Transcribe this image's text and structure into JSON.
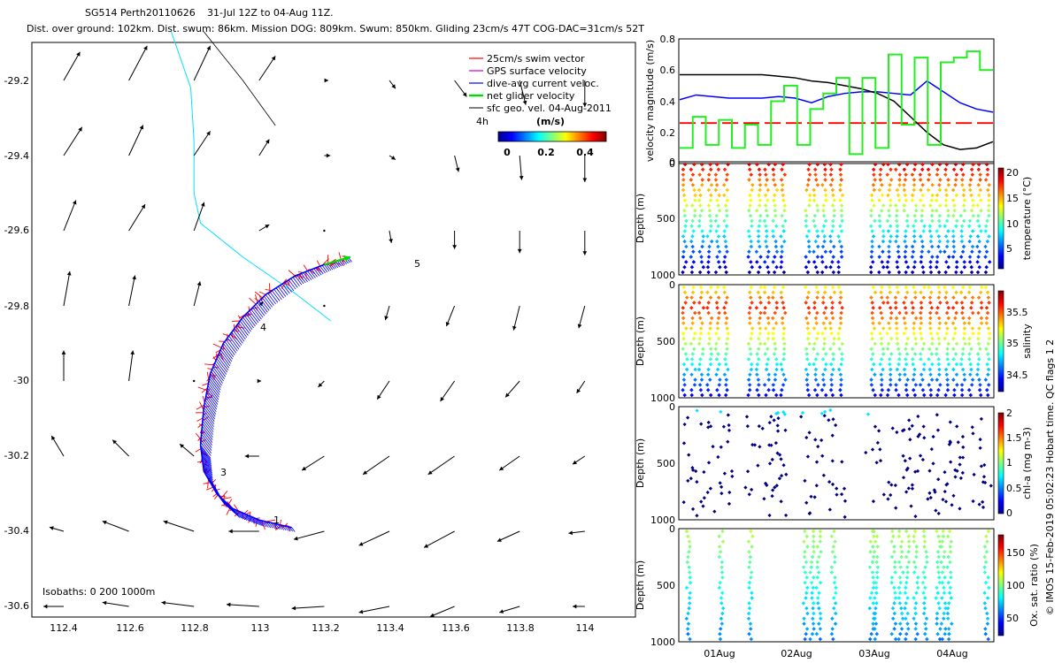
{
  "header": {
    "line1_id": "SG514 Perth20110626",
    "line1_dates": "31-Jul 12Z to 04-Aug 11Z.",
    "line2": "Dist. over ground: 102km. Dist. swum: 86km. Mission DOG: 809km. Swum: 850km. Gliding 23cm/s 47T COG-DAC=31cm/s 52T"
  },
  "footer_credit": "© IMOS 15-Feb-2019 05:02:23 Hobart time. QC flags 1  2",
  "colors": {
    "swim": "#ff0000",
    "gps": "#cc00cc",
    "dac": "#0000ff",
    "net": "#00dd00",
    "sfc": "#000000",
    "isobath": "#00e0ff",
    "speed": "#000000"
  },
  "chart_data": [
    {
      "id": "map",
      "type": "quiver",
      "xticks": [
        "112.4",
        "112.6",
        "112.8",
        "113",
        "113.2",
        "113.4",
        "113.6",
        "113.8",
        "114"
      ],
      "yticks": [
        "-29.2",
        "-29.4",
        "-29.6",
        "-29.8",
        "-30",
        "-30.2",
        "-30.4",
        "-30.6"
      ],
      "xlim": [
        112.31,
        114.15
      ],
      "ylim": [
        -30.69,
        -29.07
      ],
      "legend": [
        {
          "key": "swim",
          "label": "25cm/s swim vector"
        },
        {
          "key": "gps",
          "label": "GPS surface velocity"
        },
        {
          "key": "dac",
          "label": "dive-avg current veloc."
        },
        {
          "key": "net",
          "label": "net glider velocity"
        },
        {
          "key": "sfc",
          "label": "sfc geo. vel. 04-Aug-2011"
        }
      ],
      "legend_placement": "top-right",
      "interval_label": "4h",
      "colorbar_title": "(m/s)",
      "colorbar_ticks": [
        "0",
        "0.2",
        "0.4"
      ],
      "colorbar_range": [
        0,
        0.5
      ],
      "isobaths_label": "Isobaths: 0   200   1000m",
      "track_labels": [
        "1",
        "3",
        "4",
        "5"
      ],
      "track_path": [
        [
          113.1,
          -30.39
        ],
        [
          113.0,
          -30.37
        ],
        [
          112.92,
          -30.34
        ],
        [
          112.87,
          -30.3
        ],
        [
          112.83,
          -30.24
        ],
        [
          112.82,
          -30.17
        ],
        [
          112.83,
          -30.07
        ],
        [
          112.85,
          -29.98
        ],
        [
          112.89,
          -29.9
        ],
        [
          112.95,
          -29.83
        ],
        [
          113.02,
          -29.77
        ],
        [
          113.11,
          -29.72
        ],
        [
          113.2,
          -29.69
        ],
        [
          113.28,
          -29.67
        ]
      ],
      "current_vectors": [
        {
          "lon": 112.4,
          "lat": -29.2,
          "u": 0.08,
          "v": 0.14
        },
        {
          "lon": 112.6,
          "lat": -29.2,
          "u": 0.09,
          "v": 0.17
        },
        {
          "lon": 112.8,
          "lat": -29.2,
          "u": 0.08,
          "v": 0.17
        },
        {
          "lon": 113.0,
          "lat": -29.2,
          "u": 0.08,
          "v": 0.12
        },
        {
          "lon": 113.2,
          "lat": -29.2,
          "u": 0.02,
          "v": 0.0
        },
        {
          "lon": 113.4,
          "lat": -29.2,
          "u": 0.03,
          "v": -0.04
        },
        {
          "lon": 113.6,
          "lat": -29.2,
          "u": 0.06,
          "v": -0.08
        },
        {
          "lon": 113.8,
          "lat": -29.2,
          "u": 0.03,
          "v": -0.12
        },
        {
          "lon": 114.0,
          "lat": -29.2,
          "u": 0.0,
          "v": -0.13
        },
        {
          "lon": 112.4,
          "lat": -29.4,
          "u": 0.09,
          "v": 0.14
        },
        {
          "lon": 112.6,
          "lat": -29.4,
          "u": 0.07,
          "v": 0.15
        },
        {
          "lon": 112.8,
          "lat": -29.4,
          "u": 0.08,
          "v": 0.12
        },
        {
          "lon": 113.0,
          "lat": -29.4,
          "u": 0.05,
          "v": 0.08
        },
        {
          "lon": 113.2,
          "lat": -29.4,
          "u": 0.03,
          "v": 0.0
        },
        {
          "lon": 113.4,
          "lat": -29.4,
          "u": 0.03,
          "v": -0.02
        },
        {
          "lon": 113.6,
          "lat": -29.4,
          "u": 0.02,
          "v": -0.08
        },
        {
          "lon": 113.8,
          "lat": -29.4,
          "u": 0.01,
          "v": -0.12
        },
        {
          "lon": 114.0,
          "lat": -29.4,
          "u": 0.0,
          "v": -0.13
        },
        {
          "lon": 112.4,
          "lat": -29.6,
          "u": 0.06,
          "v": 0.15
        },
        {
          "lon": 112.6,
          "lat": -29.6,
          "u": 0.08,
          "v": 0.13
        },
        {
          "lon": 112.8,
          "lat": -29.6,
          "u": 0.05,
          "v": 0.14
        },
        {
          "lon": 113.0,
          "lat": -29.6,
          "u": 0.05,
          "v": 0.03
        },
        {
          "lon": 113.2,
          "lat": -29.6,
          "u": 0.0,
          "v": 0.0
        },
        {
          "lon": 113.4,
          "lat": -29.6,
          "u": 0.01,
          "v": -0.06
        },
        {
          "lon": 113.6,
          "lat": -29.6,
          "u": 0.0,
          "v": -0.09
        },
        {
          "lon": 113.8,
          "lat": -29.6,
          "u": 0.0,
          "v": -0.11
        },
        {
          "lon": 114.0,
          "lat": -29.6,
          "u": 0.0,
          "v": -0.12
        },
        {
          "lon": 112.4,
          "lat": -29.8,
          "u": 0.03,
          "v": 0.17
        },
        {
          "lon": 112.6,
          "lat": -29.8,
          "u": 0.03,
          "v": 0.15
        },
        {
          "lon": 112.8,
          "lat": -29.8,
          "u": 0.03,
          "v": 0.12
        },
        {
          "lon": 113.0,
          "lat": -29.8,
          "u": 0.02,
          "v": 0.02
        },
        {
          "lon": 113.2,
          "lat": -29.8,
          "u": 0.0,
          "v": 0.0
        },
        {
          "lon": 113.4,
          "lat": -29.8,
          "u": -0.02,
          "v": -0.07
        },
        {
          "lon": 113.6,
          "lat": -29.8,
          "u": -0.04,
          "v": -0.1
        },
        {
          "lon": 113.8,
          "lat": -29.8,
          "u": -0.03,
          "v": -0.12
        },
        {
          "lon": 114.0,
          "lat": -29.8,
          "u": -0.03,
          "v": -0.11
        },
        {
          "lon": 112.4,
          "lat": -30.0,
          "u": 0.0,
          "v": 0.15
        },
        {
          "lon": 112.6,
          "lat": -30.0,
          "u": 0.02,
          "v": 0.15
        },
        {
          "lon": 112.8,
          "lat": -30.0,
          "u": 0.0,
          "v": 0.0
        },
        {
          "lon": 113.0,
          "lat": -30.0,
          "u": 0.01,
          "v": 0.0
        },
        {
          "lon": 113.2,
          "lat": -30.0,
          "u": -0.03,
          "v": -0.03
        },
        {
          "lon": 113.4,
          "lat": -30.0,
          "u": -0.06,
          "v": -0.09
        },
        {
          "lon": 113.6,
          "lat": -30.0,
          "u": -0.07,
          "v": -0.1
        },
        {
          "lon": 113.8,
          "lat": -30.0,
          "u": -0.07,
          "v": -0.08
        },
        {
          "lon": 114.0,
          "lat": -30.0,
          "u": -0.04,
          "v": -0.06
        },
        {
          "lon": 112.4,
          "lat": -30.2,
          "u": -0.06,
          "v": 0.1
        },
        {
          "lon": 112.6,
          "lat": -30.2,
          "u": -0.08,
          "v": 0.08
        },
        {
          "lon": 112.8,
          "lat": -30.2,
          "u": -0.07,
          "v": 0.06
        },
        {
          "lon": 113.0,
          "lat": -30.2,
          "u": -0.07,
          "v": 0.0
        },
        {
          "lon": 113.2,
          "lat": -30.2,
          "u": -0.11,
          "v": -0.07
        },
        {
          "lon": 113.4,
          "lat": -30.2,
          "u": -0.13,
          "v": -0.09
        },
        {
          "lon": 113.6,
          "lat": -30.2,
          "u": -0.13,
          "v": -0.09
        },
        {
          "lon": 113.8,
          "lat": -30.2,
          "u": -0.1,
          "v": -0.07
        },
        {
          "lon": 114.0,
          "lat": -30.2,
          "u": -0.06,
          "v": -0.04
        },
        {
          "lon": 112.4,
          "lat": -30.4,
          "u": -0.07,
          "v": 0.02
        },
        {
          "lon": 112.6,
          "lat": -30.4,
          "u": -0.13,
          "v": 0.05
        },
        {
          "lon": 112.8,
          "lat": -30.4,
          "u": -0.15,
          "v": 0.05
        },
        {
          "lon": 113.0,
          "lat": -30.4,
          "u": -0.15,
          "v": 0.0
        },
        {
          "lon": 113.2,
          "lat": -30.4,
          "u": -0.15,
          "v": -0.04
        },
        {
          "lon": 113.4,
          "lat": -30.4,
          "u": -0.15,
          "v": -0.07
        },
        {
          "lon": 113.6,
          "lat": -30.4,
          "u": -0.15,
          "v": -0.08
        },
        {
          "lon": 113.8,
          "lat": -30.4,
          "u": -0.11,
          "v": -0.05
        },
        {
          "lon": 114.0,
          "lat": -30.4,
          "u": -0.08,
          "v": -0.01
        },
        {
          "lon": 112.4,
          "lat": -30.6,
          "u": -0.1,
          "v": 0.0
        },
        {
          "lon": 112.6,
          "lat": -30.6,
          "u": -0.13,
          "v": 0.02
        },
        {
          "lon": 112.8,
          "lat": -30.6,
          "u": -0.16,
          "v": 0.02
        },
        {
          "lon": 113.0,
          "lat": -30.6,
          "u": -0.16,
          "v": 0.01
        },
        {
          "lon": 113.2,
          "lat": -30.6,
          "u": -0.16,
          "v": -0.01
        },
        {
          "lon": 113.4,
          "lat": -30.6,
          "u": -0.15,
          "v": -0.03
        },
        {
          "lon": 113.6,
          "lat": -30.6,
          "u": -0.12,
          "v": -0.05
        },
        {
          "lon": 113.8,
          "lat": -30.6,
          "u": -0.1,
          "v": -0.03
        },
        {
          "lon": 114.0,
          "lat": -30.6,
          "u": -0.06,
          "v": 0.0
        }
      ]
    },
    {
      "id": "velocity",
      "type": "line",
      "ylabel": "velocity magnitude (m/s)",
      "ylim": [
        0,
        0.8
      ],
      "yticks": [
        "0",
        "0.2",
        "0.4",
        "0.6",
        "0.8"
      ],
      "series": [
        {
          "key": "black",
          "values": [
            0.57,
            0.57,
            0.57,
            0.57,
            0.57,
            0.57,
            0.56,
            0.55,
            0.53,
            0.52,
            0.5,
            0.48,
            0.45,
            0.4,
            0.3,
            0.2,
            0.12,
            0.09,
            0.1,
            0.14
          ]
        },
        {
          "key": "blue",
          "values": [
            0.41,
            0.44,
            0.43,
            0.42,
            0.42,
            0.42,
            0.43,
            0.42,
            0.39,
            0.43,
            0.45,
            0.46,
            0.46,
            0.45,
            0.44,
            0.53,
            0.46,
            0.39,
            0.35,
            0.33
          ]
        },
        {
          "key": "red",
          "values": [
            0.26,
            0.26,
            0.26,
            0.26,
            0.26,
            0.26,
            0.26,
            0.26,
            0.26,
            0.26,
            0.26,
            0.26,
            0.26,
            0.26,
            0.26,
            0.26,
            0.26,
            0.26,
            0.26,
            0.26
          ]
        },
        {
          "key": "green",
          "values": [
            0.1,
            0.3,
            0.12,
            0.28,
            0.1,
            0.25,
            0.12,
            0.4,
            0.5,
            0.12,
            0.35,
            0.45,
            0.55,
            0.06,
            0.55,
            0.1,
            0.7,
            0.25,
            0.68,
            0.12,
            0.65,
            0.68,
            0.72,
            0.6
          ]
        }
      ]
    },
    {
      "id": "temperature",
      "type": "scatter",
      "ylabel": "Depth (m)",
      "ylim": [
        1000,
        0
      ],
      "yticks": [
        "0",
        "500",
        "1000"
      ],
      "colorbar_label": "temperature (°C)",
      "colorbar_ticks": [
        "5",
        "10",
        "15",
        "20"
      ],
      "colorbar_range": [
        3,
        23
      ]
    },
    {
      "id": "salinity",
      "type": "scatter",
      "ylabel": "Depth (m)",
      "ylim": [
        1000,
        0
      ],
      "yticks": [
        "0",
        "500",
        "1000"
      ],
      "colorbar_label": "salinity",
      "colorbar_ticks": [
        "34.5",
        "35",
        "35.5"
      ],
      "colorbar_range": [
        34.3,
        35.8
      ]
    },
    {
      "id": "chla",
      "type": "scatter",
      "ylabel": "Depth (m)",
      "ylim": [
        1000,
        0
      ],
      "yticks": [
        "0",
        "500",
        "1000"
      ],
      "colorbar_label": "chl-a (mg m-3)",
      "colorbar_ticks": [
        "0",
        "0.5",
        "1",
        "1.5",
        "2"
      ],
      "colorbar_range": [
        0,
        2
      ]
    },
    {
      "id": "oxygen",
      "type": "scatter",
      "ylabel": "Depth (m)",
      "ylim": [
        1000,
        0
      ],
      "yticks": [
        "0",
        "500",
        "1000"
      ],
      "xticks": [
        "01Aug",
        "02Aug",
        "03Aug",
        "04Aug"
      ],
      "colorbar_label": "Ox. sat. ratio (%)",
      "colorbar_ticks": [
        "50",
        "100",
        "150"
      ],
      "colorbar_range": [
        20,
        175
      ]
    }
  ]
}
